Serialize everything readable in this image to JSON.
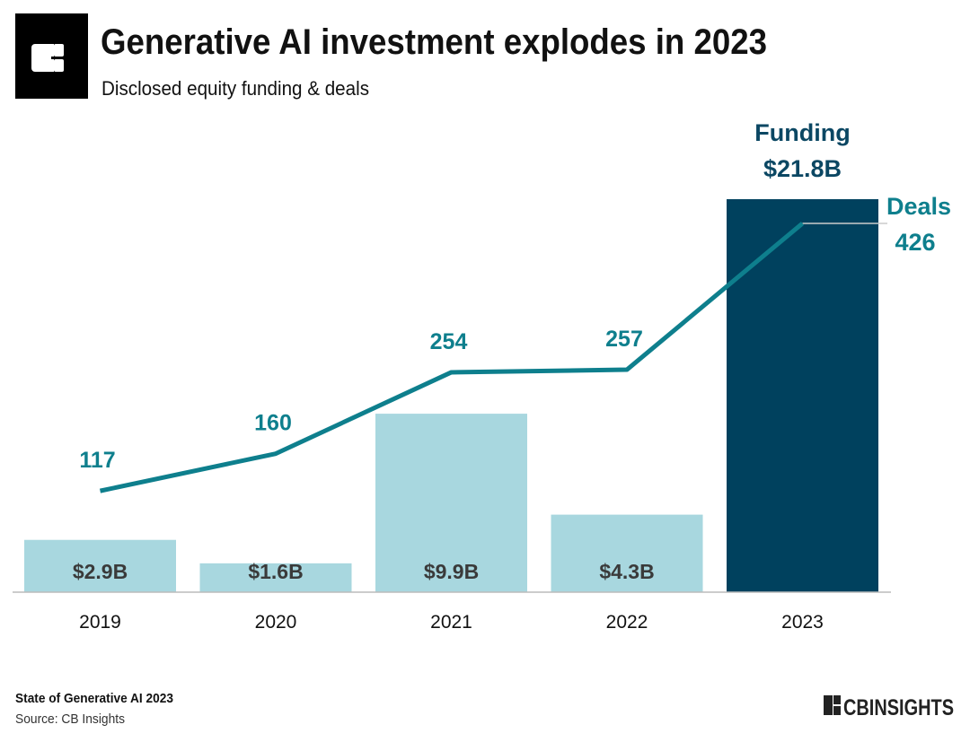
{
  "header": {
    "title": "Generative AI investment explodes in 2023",
    "subtitle": "Disclosed equity funding & deals",
    "logo_icon": "cb-insights-logo-icon"
  },
  "footer": {
    "report": "State of Generative AI 2023",
    "source": "Source: CB Insights",
    "brand": "CBINSIGHTS"
  },
  "colors": {
    "bar_light": "#a8d7df",
    "bar_highlight": "#00415e",
    "line": "#0e7f8d",
    "funding_label": "#0b4763",
    "bar_label": "#3a3a3a"
  },
  "chart_data": {
    "type": "bar+line",
    "categories": [
      "2019",
      "2020",
      "2021",
      "2022",
      "2023"
    ],
    "series": [
      {
        "name": "Funding",
        "type": "bar",
        "values": [
          2.9,
          1.6,
          9.9,
          4.3,
          21.8
        ],
        "unit": "$B",
        "labels": [
          "$2.9B",
          "$1.6B",
          "$9.9B",
          "$4.3B",
          "$21.8B"
        ]
      },
      {
        "name": "Deals",
        "type": "line",
        "values": [
          117,
          160,
          254,
          257,
          426
        ],
        "labels": [
          "117",
          "160",
          "254",
          "257",
          "426"
        ]
      }
    ],
    "highlight_category": "2023",
    "grid": false,
    "legend": "none"
  }
}
